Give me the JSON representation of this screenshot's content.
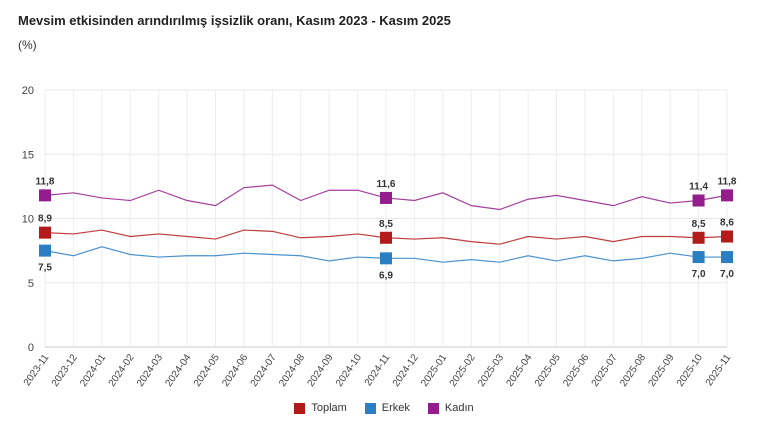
{
  "title": "Mevsim etkisinden arındırılmış işsizlik oranı, Kasım 2023 - Kasım 2025",
  "unit": "(%)",
  "chart_data": {
    "type": "line",
    "title": "Mevsim etkisinden arındırılmış işsizlik oranı, Kasım 2023 - Kasım 2025",
    "ylabel": "(%)",
    "ylim": [
      0,
      20
    ],
    "yticks": [
      0,
      5,
      10,
      15,
      20
    ],
    "grid": true,
    "legend": "bottom",
    "x": [
      "2023-11",
      "2023-12",
      "2024-01",
      "2024-02",
      "2024-03",
      "2024-04",
      "2024-05",
      "2024-06",
      "2024-07",
      "2024-08",
      "2024-09",
      "2024-10",
      "2024-11",
      "2024-12",
      "2025-01",
      "2025-02",
      "2025-03",
      "2025-04",
      "2025-05",
      "2025-06",
      "2025-07",
      "2025-08",
      "2025-09",
      "2025-10",
      "2025-11"
    ],
    "labeled_indices": [
      0,
      12,
      23,
      24
    ],
    "series": [
      {
        "name": "Toplam",
        "color": "#b31b1b",
        "values": [
          8.9,
          8.8,
          9.1,
          8.6,
          8.8,
          8.6,
          8.4,
          9.1,
          9.0,
          8.5,
          8.6,
          8.8,
          8.5,
          8.4,
          8.5,
          8.2,
          8.0,
          8.6,
          8.4,
          8.6,
          8.2,
          8.6,
          8.6,
          8.5,
          8.6
        ]
      },
      {
        "name": "Erkek",
        "color": "#2a7fc4",
        "values": [
          7.5,
          7.1,
          7.8,
          7.2,
          7.0,
          7.1,
          7.1,
          7.3,
          7.2,
          7.1,
          6.7,
          7.0,
          6.9,
          6.9,
          6.6,
          6.8,
          6.6,
          7.1,
          6.7,
          7.1,
          6.7,
          6.9,
          7.3,
          7.0,
          7.0
        ]
      },
      {
        "name": "Kadın",
        "color": "#951c8c",
        "values": [
          11.8,
          12.0,
          11.6,
          11.4,
          12.2,
          11.4,
          11.0,
          12.4,
          12.6,
          11.4,
          12.2,
          12.2,
          11.6,
          11.4,
          12.0,
          11.0,
          10.7,
          11.5,
          11.8,
          11.4,
          11.0,
          11.7,
          11.2,
          11.4,
          11.8
        ]
      }
    ]
  }
}
